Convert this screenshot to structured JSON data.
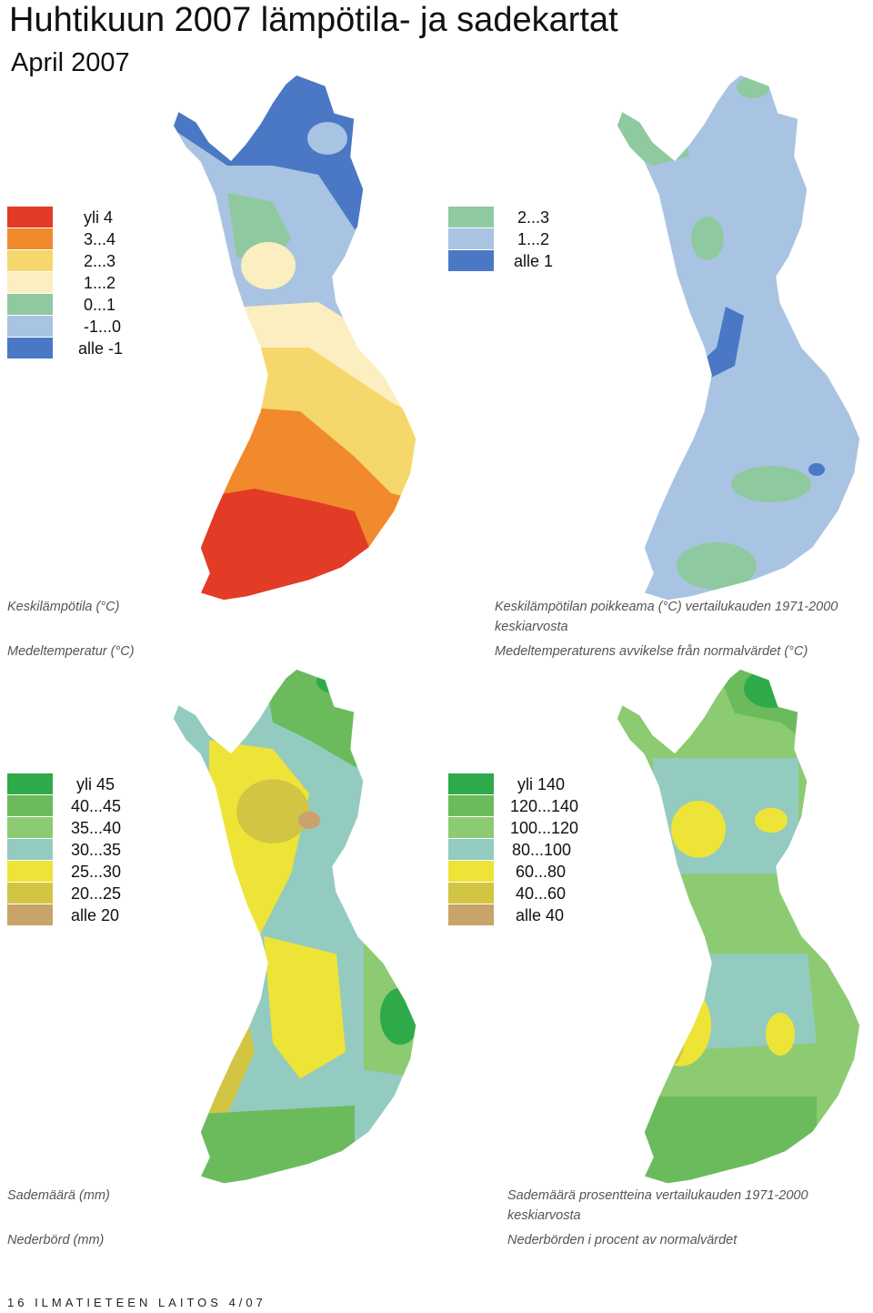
{
  "title": "Huhtikuun  2007 lämpötila- ja sadekartat",
  "subtitle": "April 2007",
  "maps": [
    {
      "caption_fi": "Keskilämpötila (°C)",
      "caption_fi_2": "",
      "caption_sv": "Medeltemperatur (°C)",
      "legend": [
        {
          "label": "yli 4",
          "color": "#e23b26"
        },
        {
          "label": "3...4",
          "color": "#f08a2c"
        },
        {
          "label": "2...3",
          "color": "#f5d76b"
        },
        {
          "label": "1...2",
          "color": "#fbeec0"
        },
        {
          "label": "0...1",
          "color": "#8fc9a0"
        },
        {
          "label": "-1...0",
          "color": "#a9c4e2"
        },
        {
          "label": "alle -1",
          "color": "#4a78c4"
        }
      ]
    },
    {
      "caption_fi": "Keskilämpötilan poikkeama (°C) vertailukauden 1971-2000",
      "caption_fi_2": "keskiarvosta",
      "caption_sv": "Medeltemperaturens avvikelse från normalvärdet (°C)",
      "legend": [
        {
          "label": "2...3",
          "color": "#8fc9a0"
        },
        {
          "label": "1...2",
          "color": "#a9c4e2"
        },
        {
          "label": "alle 1",
          "color": "#4a78c4"
        }
      ]
    },
    {
      "caption_fi": "Sademäärä (mm)",
      "caption_fi_2": "",
      "caption_sv": "Nederbörd (mm)",
      "legend": [
        {
          "label": "yli 45",
          "color": "#2faa4a"
        },
        {
          "label": "40...45",
          "color": "#6bbb5d"
        },
        {
          "label": "35...40",
          "color": "#8ccb72"
        },
        {
          "label": "30...35",
          "color": "#93cbc0"
        },
        {
          "label": "25...30",
          "color": "#eee437"
        },
        {
          "label": "20...25",
          "color": "#d2c543"
        },
        {
          "label": "alle 20",
          "color": "#c9a36a"
        }
      ]
    },
    {
      "caption_fi": "Sademäärä prosentteina vertailukauden 1971-2000",
      "caption_fi_2": "keskiarvosta",
      "caption_sv": "Nederbörden i procent av normalvärdet",
      "legend": [
        {
          "label": "yli 140",
          "color": "#2faa4a"
        },
        {
          "label": "120...140",
          "color": "#6bbb5d"
        },
        {
          "label": "100...120",
          "color": "#8ccb72"
        },
        {
          "label": "80...100",
          "color": "#93cbc0"
        },
        {
          "label": "60...80",
          "color": "#eee437"
        },
        {
          "label": "40...60",
          "color": "#d2c543"
        },
        {
          "label": "alle 40",
          "color": "#c9a36a"
        }
      ]
    }
  ],
  "footer": "16  ILMATIETEEN LAITOS 4/07"
}
